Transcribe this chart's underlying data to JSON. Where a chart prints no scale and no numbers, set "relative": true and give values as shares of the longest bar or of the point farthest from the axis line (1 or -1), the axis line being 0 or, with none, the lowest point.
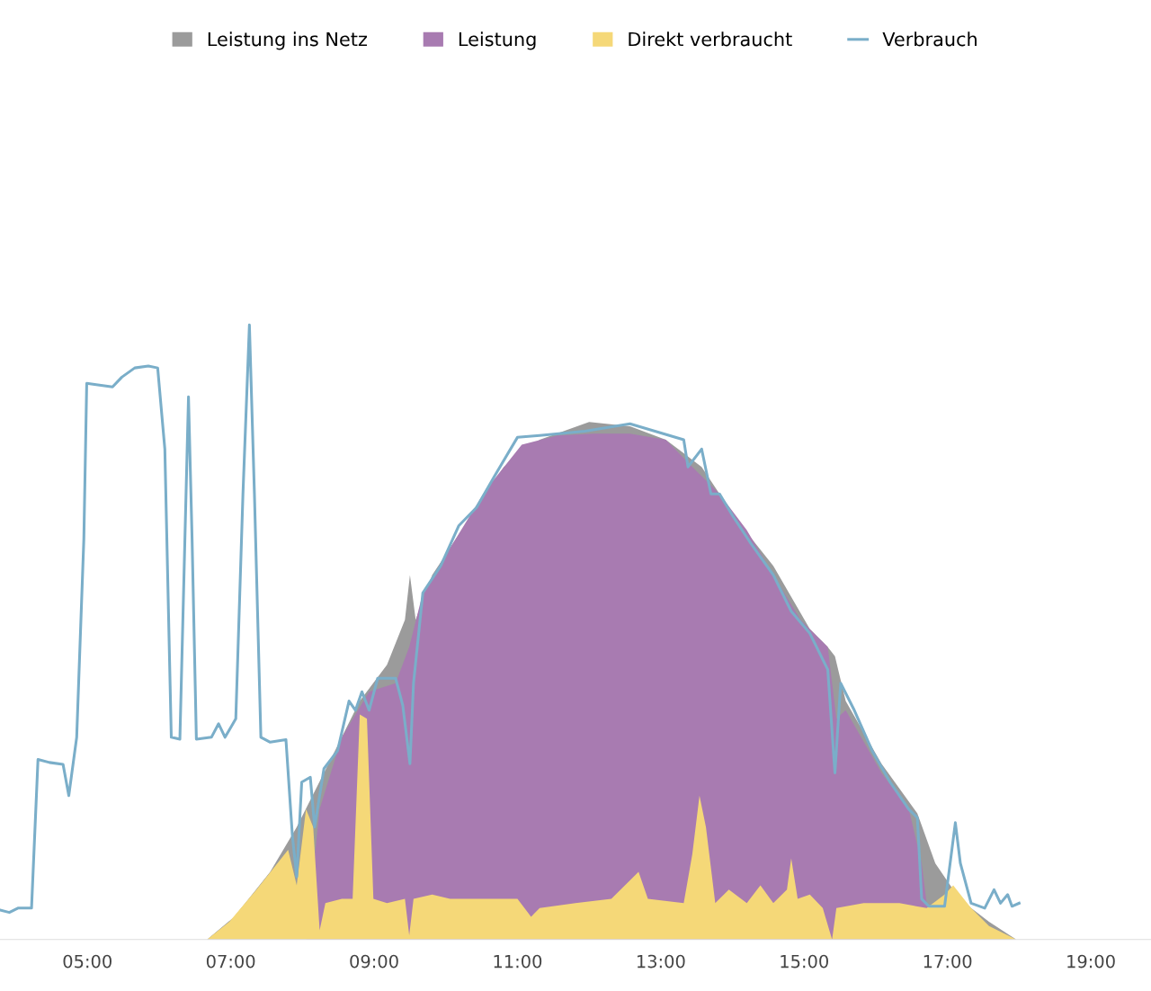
{
  "chart_data": {
    "type": "area",
    "relative": true,
    "legend": "top",
    "grid": false,
    "xlim": [
      3.78,
      19.84
    ],
    "xticks": [
      {
        "value": 5,
        "label": "05:00"
      },
      {
        "value": 7,
        "label": "07:00"
      },
      {
        "value": 9,
        "label": "09:00"
      },
      {
        "value": 11,
        "label": "11:00"
      },
      {
        "value": 13,
        "label": "13:00"
      },
      {
        "value": 15,
        "label": "15:00"
      },
      {
        "value": 17,
        "label": "17:00"
      },
      {
        "value": 19,
        "label": "19:00"
      }
    ],
    "series": [
      {
        "name": "Leistung ins Netz",
        "color": "#9b9b9b",
        "x": [
          6.67,
          7.05,
          7.55,
          7.92,
          8.3,
          8.8,
          9.18,
          9.43,
          9.5,
          9.58,
          9.81,
          10.31,
          10.81,
          11.31,
          12.0,
          12.57,
          13.07,
          13.57,
          14.07,
          14.57,
          15.08,
          15.33,
          15.43,
          15.58,
          16.08,
          16.58,
          16.83,
          17.08,
          17.33,
          17.58,
          17.96
        ],
        "values": [
          0,
          0.037,
          0.11,
          0.183,
          0.271,
          0.388,
          0.447,
          0.52,
          0.593,
          0.52,
          0.593,
          0.681,
          0.769,
          0.813,
          0.842,
          0.835,
          0.813,
          0.769,
          0.681,
          0.608,
          0.505,
          0.476,
          0.461,
          0.388,
          0.286,
          0.205,
          0.124,
          0.081,
          0.051,
          0.029,
          0
        ]
      },
      {
        "name": "Leistung",
        "color": "#a87bb1",
        "x": [
          8.05,
          8.24,
          8.55,
          8.93,
          9.3,
          9.49,
          9.68,
          10.06,
          10.56,
          11.06,
          11.56,
          12.06,
          12.57,
          13.07,
          13.44,
          13.82,
          14.2,
          14.57,
          14.95,
          15.33,
          15.45,
          15.58,
          16.08,
          16.46,
          16.64,
          16.71,
          16.89
        ],
        "values": [
          0,
          0.212,
          0.329,
          0.403,
          0.417,
          0.476,
          0.564,
          0.637,
          0.732,
          0.805,
          0.82,
          0.823,
          0.823,
          0.813,
          0.769,
          0.725,
          0.666,
          0.593,
          0.52,
          0.476,
          0.359,
          0.373,
          0.271,
          0.212,
          0.124,
          0.059,
          0
        ]
      },
      {
        "name": "Direkt verbraucht",
        "color": "#f5d878",
        "x": [
          6.67,
          6.98,
          7.36,
          7.8,
          7.92,
          8.05,
          8.15,
          8.24,
          8.32,
          8.55,
          8.7,
          8.8,
          8.9,
          8.99,
          9.18,
          9.43,
          9.49,
          9.55,
          9.81,
          10.06,
          10.68,
          11.0,
          11.19,
          11.31,
          11.81,
          12.31,
          12.69,
          12.82,
          13.32,
          13.44,
          13.54,
          13.63,
          13.76,
          13.95,
          14.2,
          14.39,
          14.57,
          14.76,
          14.82,
          14.91,
          15.08,
          15.26,
          15.39,
          15.45,
          15.83,
          16.33,
          16.71,
          16.96,
          17.08,
          17.33,
          17.58,
          17.96
        ],
        "values": [
          0,
          0.029,
          0.081,
          0.146,
          0.088,
          0.212,
          0.183,
          0.015,
          0.059,
          0.066,
          0.066,
          0.366,
          0.359,
          0.066,
          0.059,
          0.066,
          0.007,
          0.066,
          0.073,
          0.066,
          0.066,
          0.066,
          0.037,
          0.051,
          0.059,
          0.066,
          0.11,
          0.066,
          0.059,
          0.139,
          0.234,
          0.183,
          0.059,
          0.081,
          0.059,
          0.088,
          0.059,
          0.081,
          0.132,
          0.066,
          0.073,
          0.051,
          0,
          0.051,
          0.059,
          0.059,
          0.051,
          0.073,
          0.088,
          0.051,
          0.022,
          0
        ]
      },
      {
        "name": "Verbrauch",
        "type": "line",
        "color": "#7aaec9",
        "x": [
          3.78,
          3.91,
          4.03,
          4.22,
          4.31,
          4.47,
          4.66,
          4.74,
          4.85,
          4.95,
          4.99,
          5.1,
          5.35,
          5.48,
          5.66,
          5.85,
          5.98,
          6.08,
          6.17,
          6.29,
          6.36,
          6.41,
          6.46,
          6.52,
          6.73,
          6.83,
          6.92,
          7.07,
          7.17,
          7.26,
          7.33,
          7.42,
          7.55,
          7.77,
          7.86,
          7.92,
          7.99,
          8.11,
          8.17,
          8.3,
          8.49,
          8.65,
          8.74,
          8.83,
          8.93,
          9.05,
          9.3,
          9.4,
          9.5,
          9.55,
          9.68,
          9.93,
          10.18,
          10.43,
          10.68,
          11.0,
          11.31,
          11.94,
          12.57,
          13.32,
          13.38,
          13.57,
          13.7,
          13.82,
          14.01,
          14.26,
          14.57,
          14.82,
          15.08,
          15.33,
          15.43,
          15.51,
          15.7,
          15.95,
          16.2,
          16.46,
          16.58,
          16.64,
          16.74,
          16.96,
          17.11,
          17.18,
          17.33,
          17.52,
          17.65,
          17.74,
          17.84,
          17.9,
          18.0
        ],
        "values": [
          0.048,
          0.044,
          0.051,
          0.051,
          0.293,
          0.288,
          0.285,
          0.234,
          0.329,
          0.652,
          0.905,
          0.903,
          0.899,
          0.915,
          0.93,
          0.933,
          0.93,
          0.798,
          0.329,
          0.326,
          0.652,
          0.883,
          0.652,
          0.326,
          0.329,
          0.351,
          0.329,
          0.359,
          0.725,
          1,
          0.725,
          0.329,
          0.321,
          0.325,
          0.168,
          0.102,
          0.256,
          0.264,
          0.183,
          0.278,
          0.307,
          0.388,
          0.373,
          0.403,
          0.373,
          0.425,
          0.425,
          0.381,
          0.286,
          0.417,
          0.564,
          0.608,
          0.673,
          0.703,
          0.754,
          0.817,
          0.82,
          0.827,
          0.839,
          0.813,
          0.769,
          0.798,
          0.725,
          0.725,
          0.688,
          0.644,
          0.593,
          0.534,
          0.498,
          0.439,
          0.271,
          0.417,
          0.373,
          0.307,
          0.256,
          0.212,
          0.198,
          0.066,
          0.054,
          0.054,
          0.19,
          0.124,
          0.059,
          0.051,
          0.081,
          0.059,
          0.073,
          0.054,
          0.059
        ]
      }
    ]
  }
}
